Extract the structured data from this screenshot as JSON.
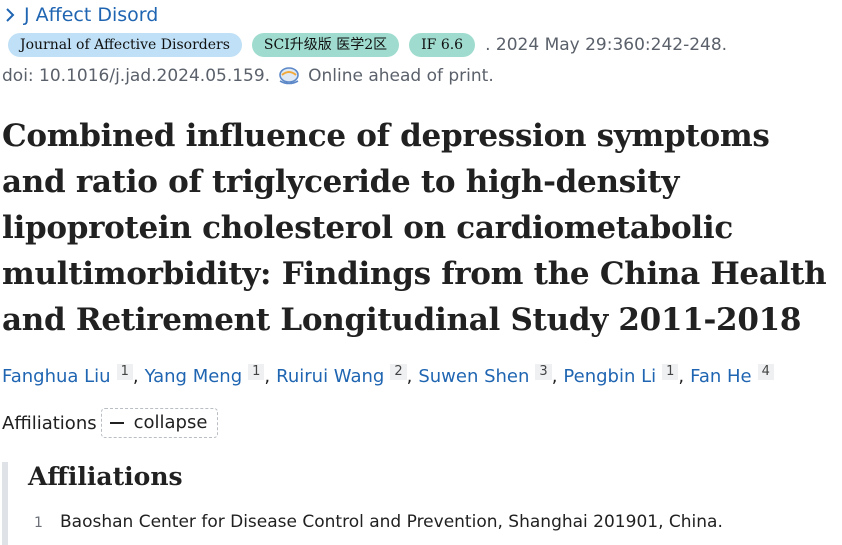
{
  "journal_nav": {
    "label": "J Affect Disord",
    "icon": "chevron-right-icon"
  },
  "badges": {
    "journal": "Journal of Affective Disorders",
    "sci": "SCI升级版 医学2区",
    "impact": "IF 6.6"
  },
  "citation": ". 2024 May 29:360:242-248.",
  "doi": "doi: 10.1016/j.jad.2024.05.159.",
  "publication_status": "Online ahead of print.",
  "title": "Combined influence of depression symptoms and ratio of triglyceride to high-density lipoprotein cholesterol on cardiometabolic multimorbidity: Findings from the China Health and Retirement Longitudinal Study 2011-2018",
  "authors": [
    {
      "name": "Fanghua Liu",
      "aff": "1"
    },
    {
      "name": "Yang Meng",
      "aff": "1"
    },
    {
      "name": "Ruirui Wang",
      "aff": "2"
    },
    {
      "name": "Suwen Shen",
      "aff": "3"
    },
    {
      "name": "Pengbin Li",
      "aff": "1"
    },
    {
      "name": "Fan He",
      "aff": "4"
    }
  ],
  "separator": ",",
  "affiliations_toggle": {
    "label": "Affiliations",
    "button": "collapse"
  },
  "affiliations_panel": {
    "heading": "Affiliations",
    "items": [
      {
        "num": "1",
        "text": "Baoshan Center for Disease Control and Prevention, Shanghai 201901, China."
      }
    ]
  },
  "colors": {
    "link": "#1f65b2",
    "journal_badge": "#bfe0f6",
    "metric_badge": "#9fdccf",
    "muted": "#5b616b"
  }
}
